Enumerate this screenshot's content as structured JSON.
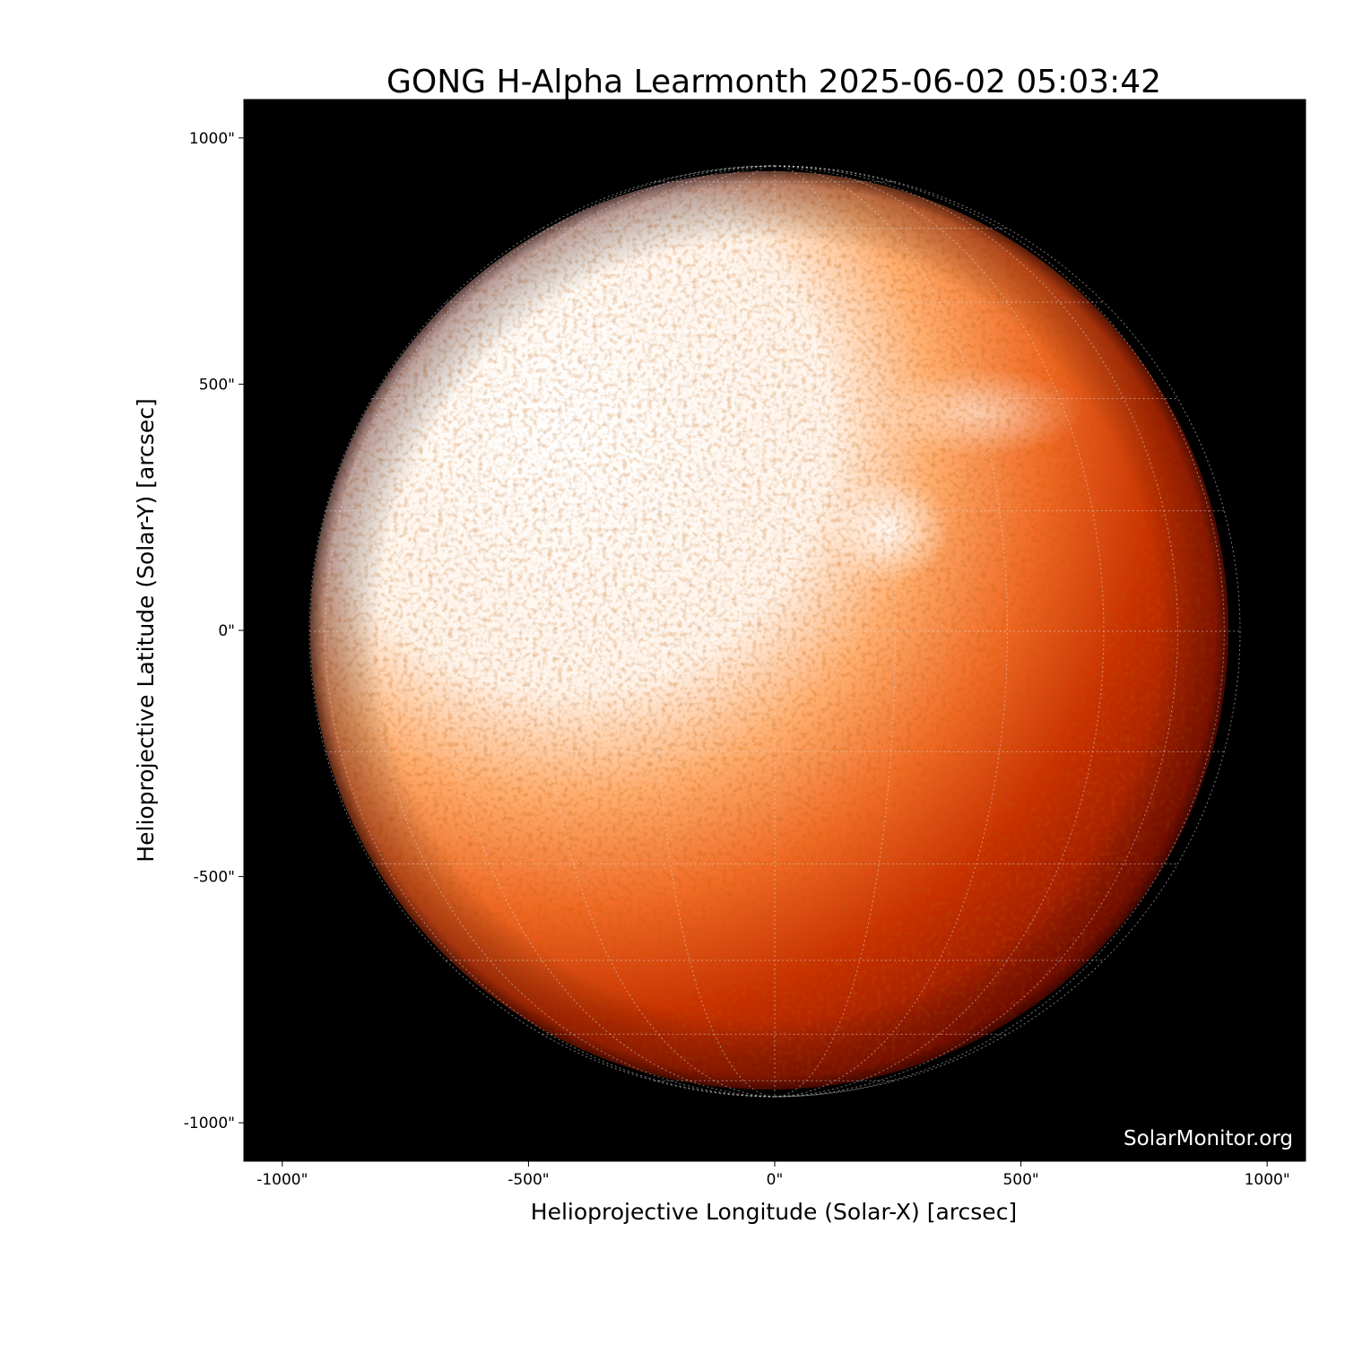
{
  "chart_data": {
    "type": "image",
    "title": "GONG H-Alpha Learmonth 2025-06-02 05:03:42",
    "xlabel": "Helioprojective Longitude (Solar-X) [arcsec]",
    "ylabel": "Helioprojective Latitude (Solar-Y) [arcsec]",
    "xlim": [
      -1078,
      1078
    ],
    "ylim": [
      -1078,
      1078
    ],
    "x_ticks": [
      -1000,
      -500,
      0,
      500,
      1000
    ],
    "x_tick_labels": [
      "-1000\"",
      "-500\"",
      "0\"",
      "500\"",
      "1000\""
    ],
    "y_ticks": [
      1000,
      500,
      0,
      -500,
      -1000
    ],
    "y_tick_labels": [
      "1000\"",
      "500\"",
      "0\"",
      "-500\"",
      "-1000\""
    ],
    "solar_radius_arcsec": 945,
    "colormap": [
      "#000000",
      "#600800",
      "#c02800",
      "#ff7a30",
      "#ffffff"
    ],
    "grid": "heliographic lat/lon dotted",
    "watermark": "SolarMonitor.org"
  }
}
